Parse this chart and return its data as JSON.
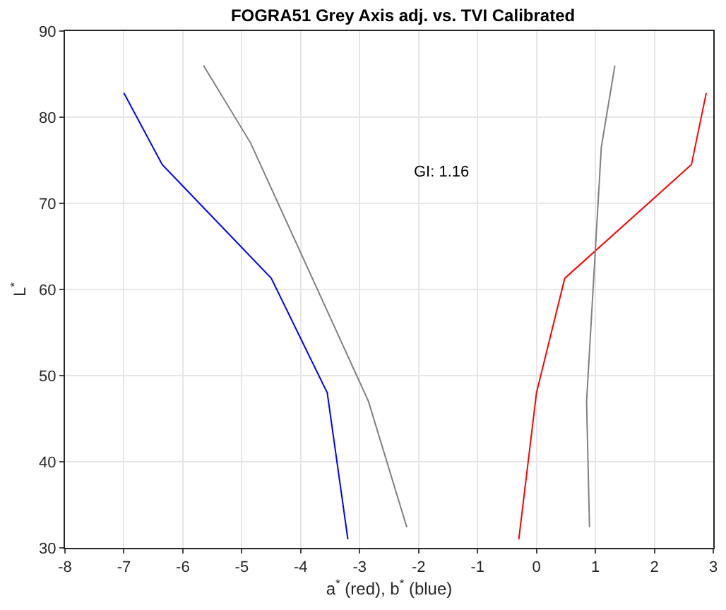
{
  "chart_data": {
    "type": "line",
    "title": "FOGRA51 Grey Axis adj. vs. TVI Calibrated",
    "xlabel": "a$^{*}$ (red), b$^{*}$ (blue)",
    "ylabel": "L$^{*}$",
    "annotations": [
      "GI: 1.16"
    ],
    "series": [
      {
        "color": "#0000ff",
        "x": [
          -7,
          -6.35,
          -4.5,
          -3.55,
          -3.2
        ],
        "values": [
          82.8,
          74.5,
          61.3,
          48,
          31
        ]
      },
      {
        "color": "#808080",
        "x": [
          -5.65,
          -4.85,
          -2.85,
          -2.2
        ],
        "values": [
          86,
          77,
          47,
          32.4
        ]
      },
      {
        "color": "#ff0000",
        "x": [
          -0.3,
          0,
          0.48,
          2.63,
          2.88
        ],
        "values": [
          31,
          48,
          61.3,
          74.5,
          82.8
        ]
      },
      {
        "color": "#808080",
        "x": [
          0.9,
          0.85,
          1.1,
          1.33
        ],
        "values": [
          32.4,
          47,
          76.5,
          86
        ]
      }
    ],
    "xlim": [
      -8,
      3
    ],
    "xticks": [
      -8,
      -7,
      -6,
      -5,
      -4,
      -3,
      -2,
      -1,
      0,
      1,
      2,
      3
    ],
    "ylim": [
      30,
      90
    ],
    "yticks": [
      30,
      40,
      50,
      60,
      70,
      80,
      90
    ],
    "grid": true,
    "marker": "none",
    "line_style": "solid"
  }
}
